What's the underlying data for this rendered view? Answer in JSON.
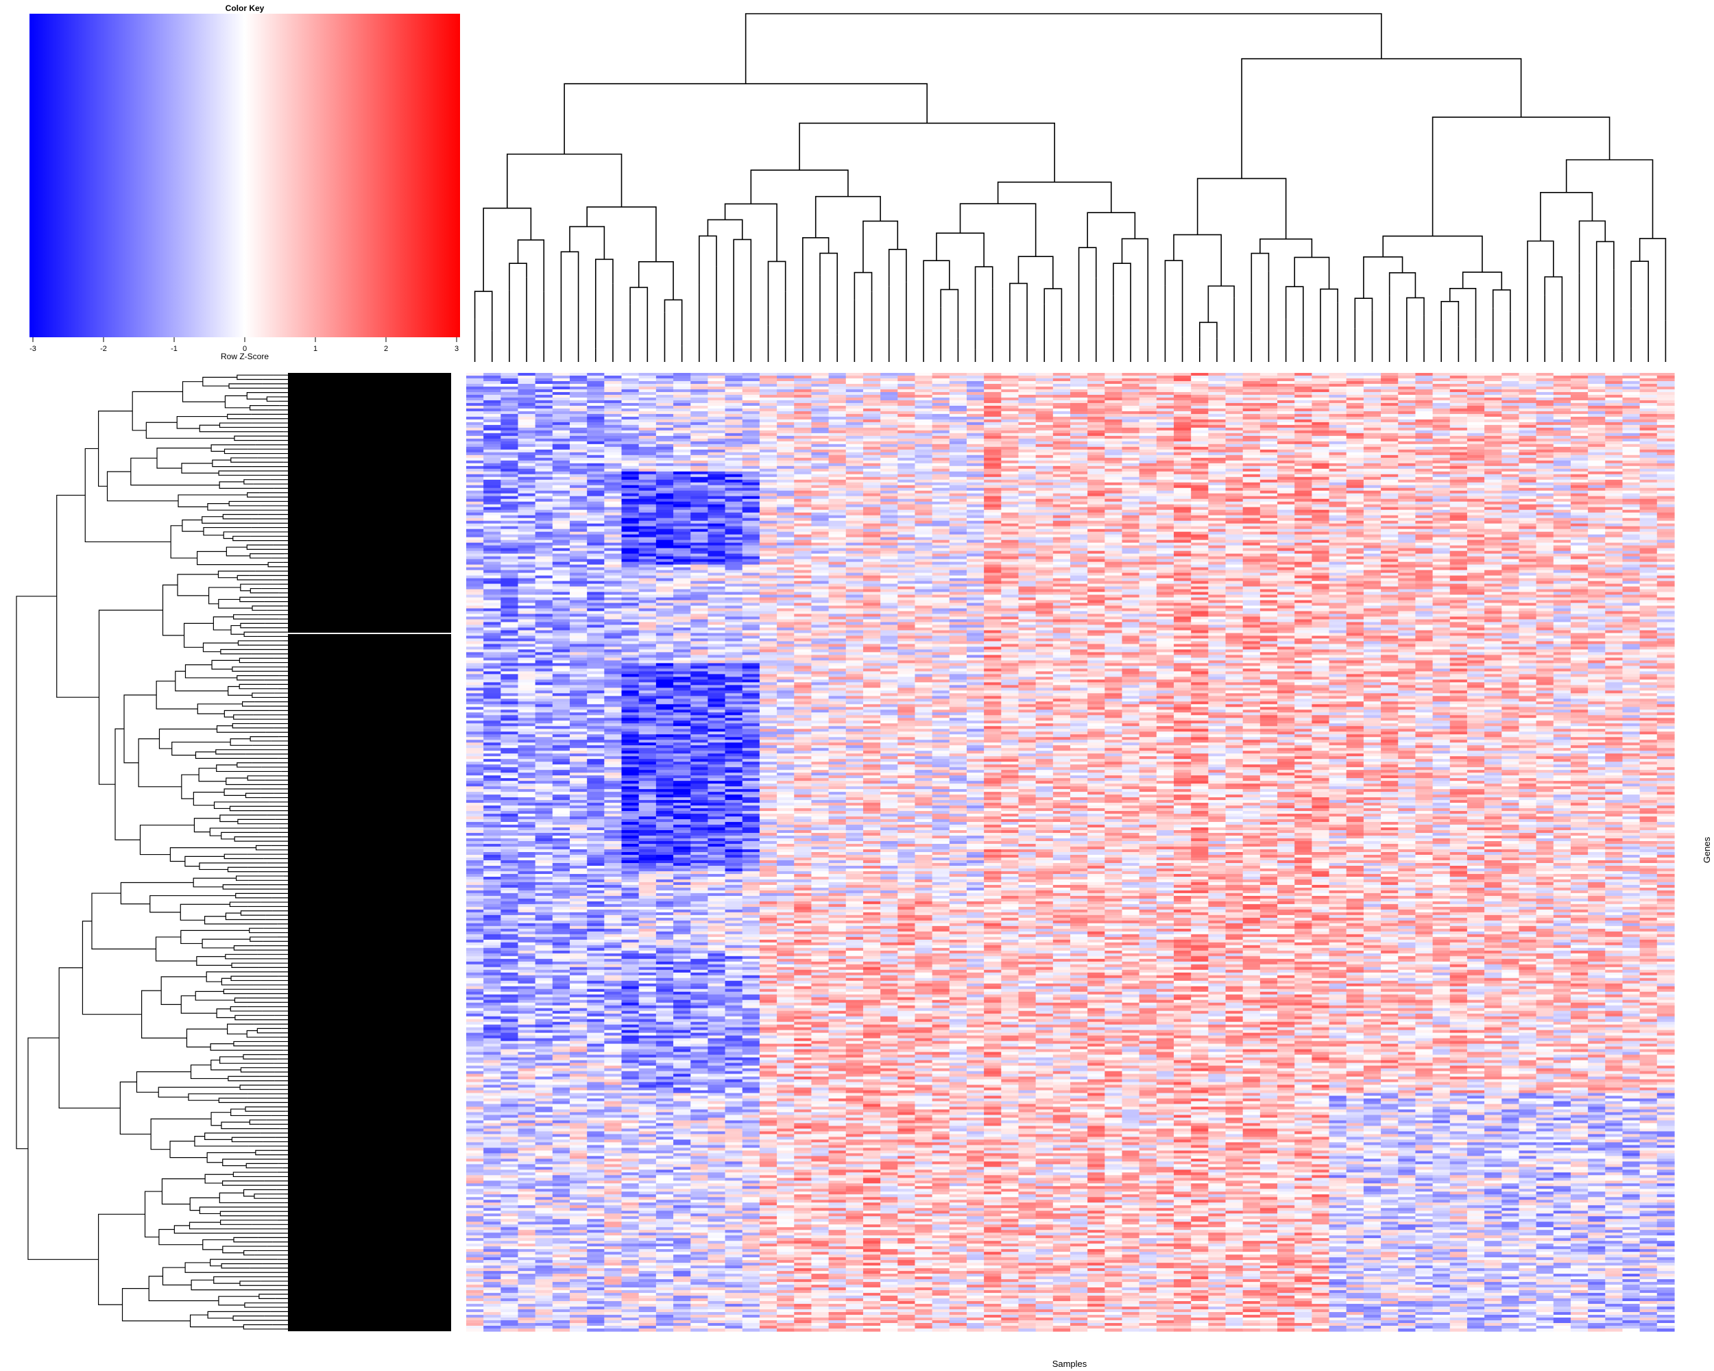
{
  "chart_data": [
    {
      "type": "color_key",
      "title": "Color Key",
      "xlabel": "Row Z-Score",
      "range": [
        -3,
        3
      ],
      "ticks": [
        -3,
        -2,
        -1,
        0,
        1,
        2,
        3
      ],
      "tick_labels": [
        "-3",
        "-2",
        "-1",
        "0",
        "1",
        "2",
        "3"
      ],
      "colors": {
        "low": "#0000ff",
        "mid": "#ffffff",
        "high": "#ff0000"
      }
    },
    {
      "type": "heatmap",
      "xlabel": "Samples",
      "ylabel": "Genes",
      "color_scale": {
        "min": -3,
        "max": 3,
        "low": "#0000ff",
        "mid": "#ffffff",
        "high": "#ff0000"
      },
      "n_columns": 70,
      "column_dendrogram": true,
      "row_dendrogram": true,
      "column_summary": [
        {
          "cols": "1-10",
          "overall": "mostly blue (low)"
        },
        {
          "cols": "10-17",
          "overall": "strong blue in upper rows, mixed below"
        },
        {
          "cols": "18-30",
          "overall": "mixed, pink and white"
        },
        {
          "cols": "31-50",
          "overall": "mostly red/pink (high)"
        },
        {
          "cols": "51-70",
          "overall": "red upper rows, mixed blue lower rows"
        }
      ]
    }
  ]
}
